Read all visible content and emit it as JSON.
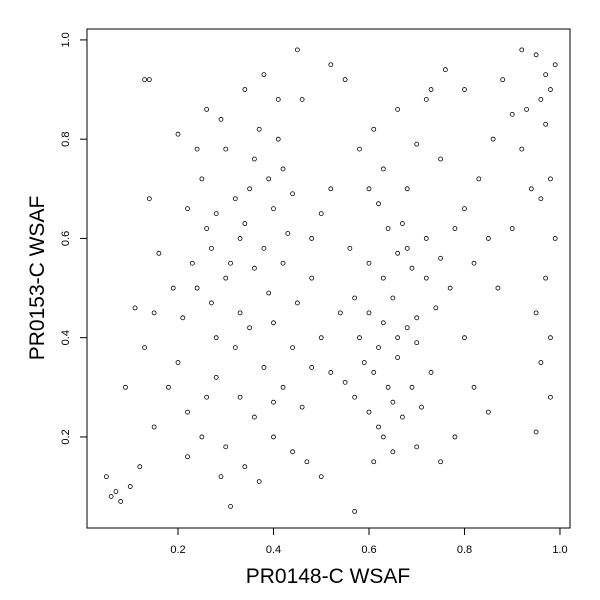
{
  "chart_data": {
    "type": "scatter",
    "x_label": "PR0148-C WSAF",
    "y_label": "PR0153-C WSAF",
    "xlim": [
      0.0094,
      1.021
    ],
    "ylim": [
      0.0165,
      1.022
    ],
    "xticks": [
      0.2,
      0.4,
      0.6,
      0.8,
      {
        "value": 1,
        "label": "1.0"
      }
    ],
    "yticks": [
      0.2,
      0.4,
      0.6,
      0.8,
      {
        "value": 1,
        "label": "1.0"
      }
    ],
    "color": "#000000",
    "x": [
      0.25,
      0.28,
      0.3,
      0.33,
      0.35,
      0.37,
      0.4,
      0.42,
      0.27,
      0.31,
      0.34,
      0.36,
      0.38,
      0.41,
      0.44,
      0.29,
      0.32,
      0.26,
      0.39,
      0.43,
      0.24,
      0.27,
      0.3,
      0.33,
      0.36,
      0.39,
      0.42,
      0.45,
      0.48,
      0.35,
      0.58,
      0.6,
      0.62,
      0.63,
      0.65,
      0.66,
      0.68,
      0.7,
      0.61,
      0.64,
      0.57,
      0.6,
      0.62,
      0.65,
      0.67,
      0.69,
      0.71,
      0.73,
      0.59,
      0.55,
      0.58,
      0.61,
      0.63,
      0.66,
      0.68,
      0.7,
      0.72,
      0.75,
      0.62,
      0.67,
      0.56,
      0.6,
      0.63,
      0.66,
      0.69,
      0.72,
      0.75,
      0.78,
      0.8,
      0.77,
      0.95,
      0.97,
      0.98,
      0.96,
      0.99,
      0.93,
      0.97,
      0.98,
      0.96,
      0.99,
      0.97,
      0.95,
      0.98,
      0.96,
      0.94,
      0.92,
      0.98,
      0.95,
      0.9,
      0.92,
      0.07,
      0.08,
      0.1,
      0.06,
      0.12,
      0.15,
      0.18,
      0.2,
      0.22,
      0.25,
      0.28,
      0.3,
      0.33,
      0.36,
      0.38,
      0.4,
      0.42,
      0.44,
      0.46,
      0.31,
      0.13,
      0.14,
      0.16,
      0.15,
      0.13,
      0.11,
      0.05,
      0.09,
      0.14,
      0.2,
      0.48,
      0.5,
      0.52,
      0.46,
      0.45,
      0.52,
      0.55,
      0.5,
      0.52,
      0.54,
      0.8,
      0.82,
      0.85,
      0.78,
      0.75,
      0.7,
      0.65,
      0.57,
      0.5,
      0.47,
      0.82,
      0.85,
      0.87,
      0.83,
      0.86,
      0.8,
      0.76,
      0.73,
      0.88,
      0.9,
      0.22,
      0.24,
      0.26,
      0.34,
      0.38,
      0.41,
      0.28,
      0.32,
      0.4,
      0.44,
      0.21,
      0.23,
      0.19,
      0.26,
      0.34,
      0.37,
      0.29,
      0.22,
      0.4,
      0.48,
      0.64,
      0.6,
      0.57,
      0.74,
      0.72,
      0.68,
      0.61,
      0.63,
      0.7,
      0.66
    ],
    "y": [
      0.72,
      0.65,
      0.78,
      0.6,
      0.7,
      0.82,
      0.66,
      0.74,
      0.58,
      0.55,
      0.63,
      0.76,
      0.58,
      0.8,
      0.69,
      0.84,
      0.68,
      0.62,
      0.72,
      0.61,
      0.5,
      0.47,
      0.52,
      0.45,
      0.54,
      0.49,
      0.55,
      0.47,
      0.52,
      0.42,
      0.4,
      0.45,
      0.38,
      0.43,
      0.48,
      0.36,
      0.42,
      0.39,
      0.33,
      0.3,
      0.28,
      0.25,
      0.22,
      0.27,
      0.24,
      0.3,
      0.26,
      0.33,
      0.35,
      0.31,
      0.78,
      0.82,
      0.74,
      0.86,
      0.7,
      0.79,
      0.88,
      0.76,
      0.67,
      0.63,
      0.58,
      0.55,
      0.52,
      0.57,
      0.54,
      0.6,
      0.56,
      0.62,
      0.66,
      0.5,
      0.97,
      0.93,
      0.9,
      0.88,
      0.95,
      0.86,
      0.83,
      0.72,
      0.68,
      0.6,
      0.52,
      0.45,
      0.4,
      0.35,
      0.7,
      0.78,
      0.28,
      0.21,
      0.85,
      0.98,
      0.09,
      0.07,
      0.1,
      0.08,
      0.14,
      0.22,
      0.3,
      0.35,
      0.25,
      0.2,
      0.32,
      0.18,
      0.28,
      0.24,
      0.34,
      0.2,
      0.3,
      0.17,
      0.26,
      0.06,
      0.92,
      0.92,
      0.57,
      0.45,
      0.38,
      0.46,
      0.12,
      0.3,
      0.68,
      0.81,
      0.6,
      0.65,
      0.7,
      0.88,
      0.98,
      0.95,
      0.92,
      0.4,
      0.33,
      0.45,
      0.4,
      0.3,
      0.25,
      0.2,
      0.15,
      0.18,
      0.17,
      0.05,
      0.12,
      0.15,
      0.55,
      0.6,
      0.5,
      0.72,
      0.8,
      0.9,
      0.94,
      0.9,
      0.92,
      0.62,
      0.66,
      0.78,
      0.86,
      0.9,
      0.93,
      0.88,
      0.4,
      0.38,
      0.43,
      0.38,
      0.44,
      0.55,
      0.5,
      0.28,
      0.14,
      0.11,
      0.12,
      0.16,
      0.27,
      0.34,
      0.62,
      0.7,
      0.48,
      0.46,
      0.52,
      0.58,
      0.15,
      0.2,
      0.44,
      0.4
    ]
  }
}
